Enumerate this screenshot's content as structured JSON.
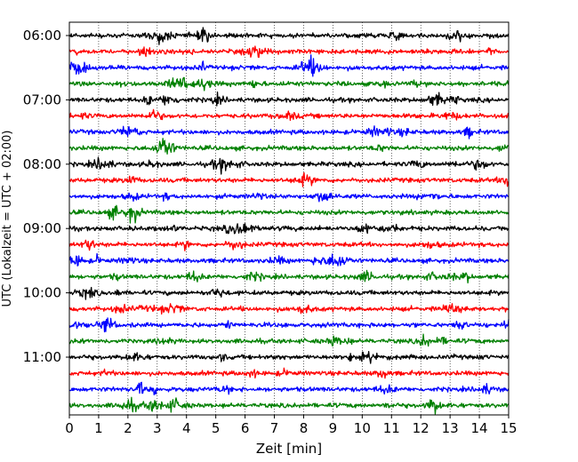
{
  "chart_data": {
    "type": "line",
    "title": "",
    "xlabel": "Zeit  [min]",
    "ylabel": "UTC (Lokalzeit = UTC + 02:00)",
    "xlim": [
      0,
      15
    ],
    "x_ticks": [
      "0",
      "1",
      "2",
      "3",
      "4",
      "5",
      "6",
      "7",
      "8",
      "9",
      "10",
      "11",
      "12",
      "13",
      "14",
      "15"
    ],
    "y_ticks": [
      "06:00",
      "07:00",
      "08:00",
      "09:00",
      "10:00",
      "11:00"
    ],
    "grid": "vertical dotted lines at each minute",
    "trace_interval_minutes": 15,
    "trace_colors": [
      "#000000",
      "#ff0000",
      "#0000ff",
      "#008000"
    ],
    "series": [
      {
        "start": "06:00",
        "color": "#000000"
      },
      {
        "start": "06:15",
        "color": "#ff0000"
      },
      {
        "start": "06:30",
        "color": "#0000ff"
      },
      {
        "start": "06:45",
        "color": "#008000"
      },
      {
        "start": "07:00",
        "color": "#000000"
      },
      {
        "start": "07:15",
        "color": "#ff0000"
      },
      {
        "start": "07:30",
        "color": "#0000ff"
      },
      {
        "start": "07:45",
        "color": "#008000"
      },
      {
        "start": "08:00",
        "color": "#000000"
      },
      {
        "start": "08:15",
        "color": "#ff0000"
      },
      {
        "start": "08:30",
        "color": "#0000ff"
      },
      {
        "start": "08:45",
        "color": "#008000"
      },
      {
        "start": "09:00",
        "color": "#000000"
      },
      {
        "start": "09:15",
        "color": "#ff0000"
      },
      {
        "start": "09:30",
        "color": "#0000ff"
      },
      {
        "start": "09:45",
        "color": "#008000"
      },
      {
        "start": "10:00",
        "color": "#000000"
      },
      {
        "start": "10:15",
        "color": "#ff0000"
      },
      {
        "start": "10:30",
        "color": "#0000ff"
      },
      {
        "start": "10:45",
        "color": "#008000"
      },
      {
        "start": "11:00",
        "color": "#000000"
      },
      {
        "start": "11:15",
        "color": "#ff0000"
      },
      {
        "start": "11:30",
        "color": "#0000ff"
      },
      {
        "start": "11:45",
        "color": "#008000"
      }
    ]
  }
}
